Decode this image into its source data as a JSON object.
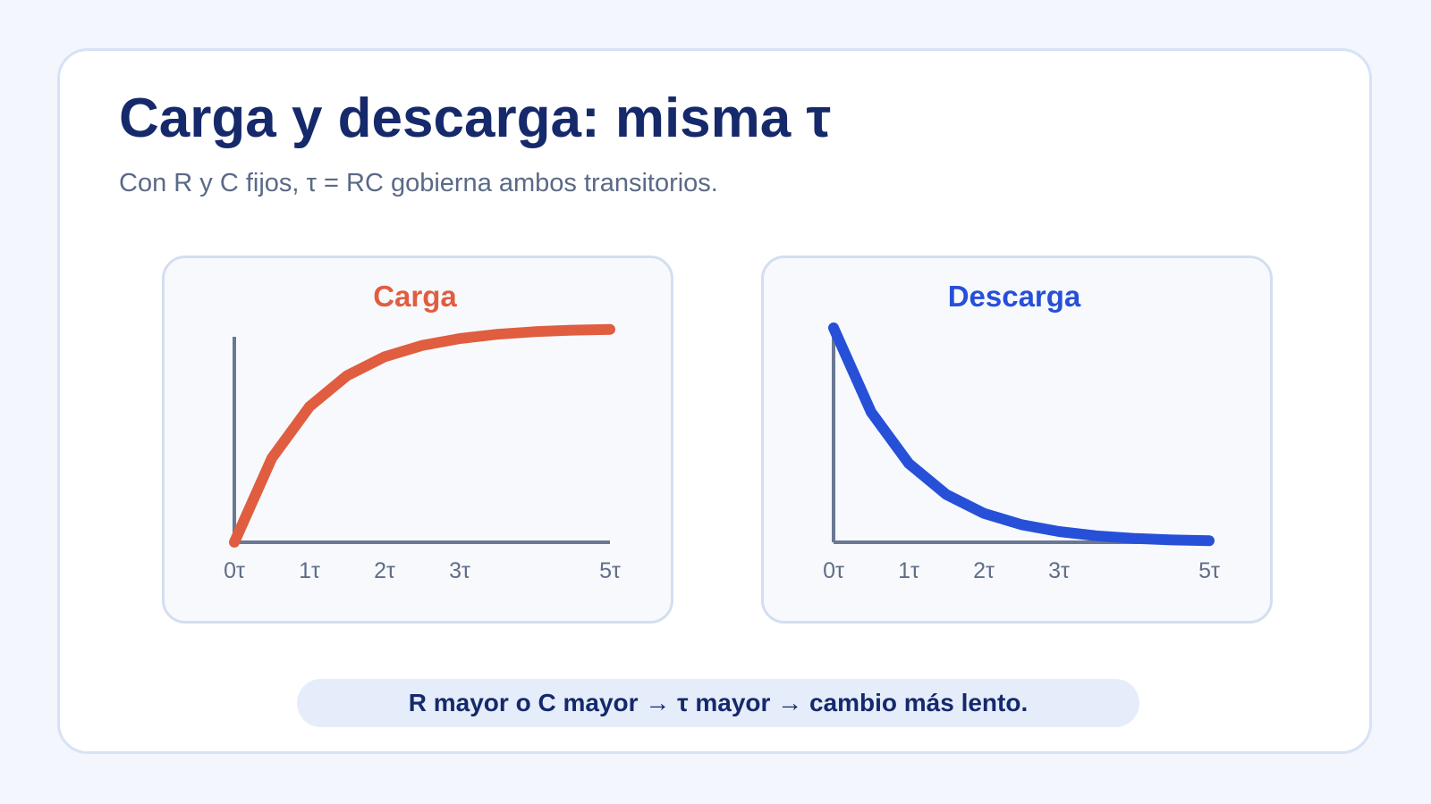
{
  "title": "Carga y descarga: misma τ",
  "subtitle": "Con R y C fijos, τ = RC gobierna ambos transitorios.",
  "note": "R mayor o C mayor → τ mayor → cambio más lento.",
  "colors": {
    "carga": "#e05d40",
    "descarga": "#2750d8",
    "title": "#15296b"
  },
  "chart_data": [
    {
      "type": "line",
      "title": "Carga",
      "x": [
        0,
        0.5,
        1,
        1.5,
        2,
        2.5,
        3,
        3.5,
        4,
        4.5,
        5
      ],
      "values": [
        0,
        0.393,
        0.632,
        0.777,
        0.865,
        0.918,
        0.95,
        0.97,
        0.982,
        0.989,
        0.993
      ],
      "xticks": [
        0,
        1,
        2,
        3,
        5
      ],
      "xtick_labels": [
        "0τ",
        "1τ",
        "2τ",
        "3τ",
        "5τ"
      ],
      "xlim": [
        0,
        5
      ],
      "ylim": [
        0,
        1
      ],
      "grid": false
    },
    {
      "type": "line",
      "title": "Descarga",
      "x": [
        0,
        0.5,
        1,
        1.5,
        2,
        2.5,
        3,
        3.5,
        4,
        4.5,
        5
      ],
      "values": [
        1,
        0.607,
        0.368,
        0.223,
        0.135,
        0.082,
        0.05,
        0.03,
        0.018,
        0.011,
        0.007
      ],
      "xticks": [
        0,
        1,
        2,
        3,
        5
      ],
      "xtick_labels": [
        "0τ",
        "1τ",
        "2τ",
        "3τ",
        "5τ"
      ],
      "xlim": [
        0,
        5
      ],
      "ylim": [
        0,
        1
      ],
      "grid": false
    }
  ]
}
